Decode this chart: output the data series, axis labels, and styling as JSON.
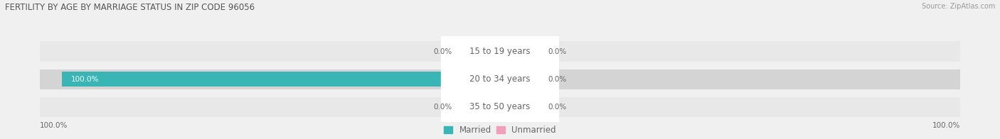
{
  "title": "FERTILITY BY AGE BY MARRIAGE STATUS IN ZIP CODE 96056",
  "source": "Source: ZipAtlas.com",
  "categories": [
    "15 to 19 years",
    "20 to 34 years",
    "35 to 50 years"
  ],
  "married_values": [
    0.0,
    100.0,
    0.0
  ],
  "unmarried_values": [
    0.0,
    0.0,
    0.0
  ],
  "married_color": "#3ab5b5",
  "unmarried_color": "#f0a0b8",
  "bar_bg_color": "#e2e2e2",
  "row_bg_colors": [
    "#ebebeb",
    "#d8d8d8",
    "#ebebeb"
  ],
  "title_fontsize": 8.5,
  "source_fontsize": 7.0,
  "label_fontsize": 7.5,
  "category_fontsize": 8.5,
  "legend_fontsize": 8.5,
  "background_color": "#f0f0f0",
  "center_label_color": "#ffffff",
  "text_color": "#666666",
  "left_axis_label": "100.0%",
  "right_axis_label": "100.0%"
}
